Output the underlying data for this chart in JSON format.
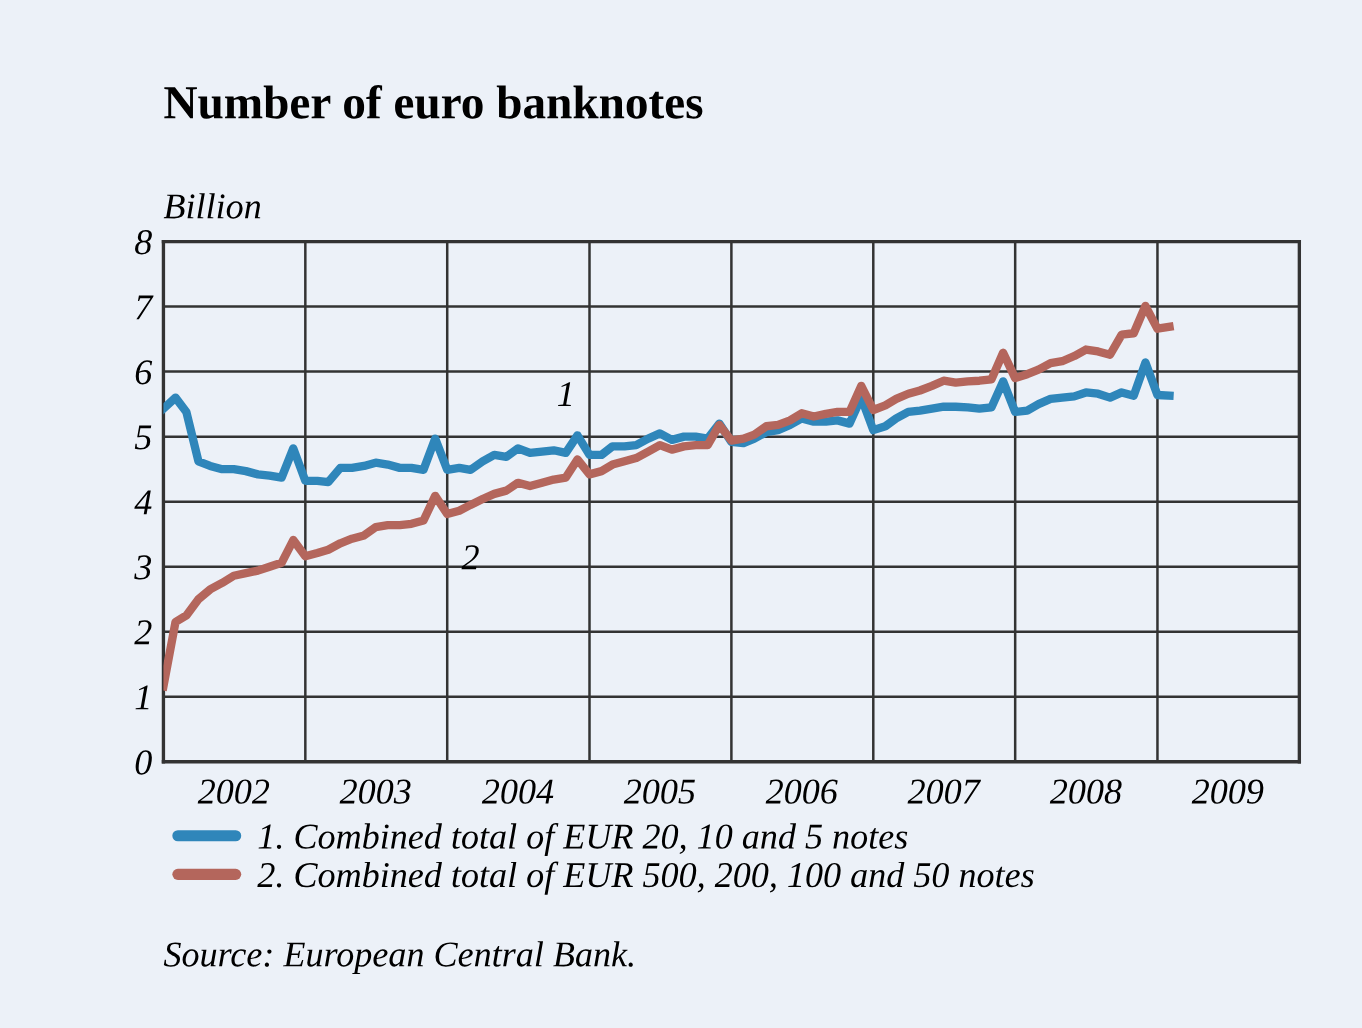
{
  "chart_data": {
    "type": "line",
    "title": "Number of euro banknotes",
    "ylabel": "Billion",
    "x": [
      "2002-01",
      "2002-02",
      "2002-03",
      "2002-04",
      "2002-05",
      "2002-06",
      "2002-07",
      "2002-08",
      "2002-09",
      "2002-10",
      "2002-11",
      "2002-12",
      "2003-01",
      "2003-02",
      "2003-03",
      "2003-04",
      "2003-05",
      "2003-06",
      "2003-07",
      "2003-08",
      "2003-09",
      "2003-10",
      "2003-11",
      "2003-12",
      "2004-01",
      "2004-02",
      "2004-03",
      "2004-04",
      "2004-05",
      "2004-06",
      "2004-07",
      "2004-08",
      "2004-09",
      "2004-10",
      "2004-11",
      "2004-12",
      "2005-01",
      "2005-02",
      "2005-03",
      "2005-04",
      "2005-05",
      "2005-06",
      "2005-07",
      "2005-08",
      "2005-09",
      "2005-10",
      "2005-11",
      "2005-12",
      "2006-01",
      "2006-02",
      "2006-03",
      "2006-04",
      "2006-05",
      "2006-06",
      "2006-07",
      "2006-08",
      "2006-09",
      "2006-10",
      "2006-11",
      "2006-12",
      "2007-01",
      "2007-02",
      "2007-03",
      "2007-04",
      "2007-05",
      "2007-06",
      "2007-07",
      "2007-08",
      "2007-09",
      "2007-10",
      "2007-11",
      "2007-12",
      "2008-01",
      "2008-02",
      "2008-03",
      "2008-04",
      "2008-05",
      "2008-06",
      "2008-07",
      "2008-08",
      "2008-09",
      "2008-10",
      "2008-11",
      "2008-12",
      "2009-01",
      "2009-02"
    ],
    "series": [
      {
        "name": "1. Combined total of EUR 20, 10 and 5 notes",
        "color": "#2f86ba",
        "values": [
          5.43,
          5.6,
          5.38,
          4.62,
          4.55,
          4.5,
          4.5,
          4.47,
          4.42,
          4.4,
          4.37,
          4.82,
          4.32,
          4.32,
          4.3,
          4.52,
          4.52,
          4.55,
          4.6,
          4.57,
          4.52,
          4.52,
          4.49,
          4.97,
          4.49,
          4.52,
          4.49,
          4.62,
          4.72,
          4.69,
          4.82,
          4.75,
          4.77,
          4.79,
          4.75,
          5.02,
          4.72,
          4.72,
          4.85,
          4.85,
          4.87,
          4.97,
          5.05,
          4.95,
          5.0,
          5.0,
          4.97,
          5.2,
          4.92,
          4.9,
          4.97,
          5.07,
          5.1,
          5.18,
          5.28,
          5.23,
          5.23,
          5.25,
          5.2,
          5.6,
          5.1,
          5.16,
          5.28,
          5.38,
          5.4,
          5.43,
          5.46,
          5.46,
          5.45,
          5.43,
          5.45,
          5.85,
          5.38,
          5.4,
          5.5,
          5.58,
          5.6,
          5.62,
          5.68,
          5.66,
          5.6,
          5.68,
          5.63,
          6.14,
          5.64,
          5.63
        ]
      },
      {
        "name": "2. Combined total of EUR 500, 200, 100 and 50 notes",
        "color": "#b4665c",
        "values": [
          1.16,
          2.15,
          2.25,
          2.5,
          2.65,
          2.75,
          2.86,
          2.9,
          2.94,
          3.0,
          3.06,
          3.41,
          3.16,
          3.21,
          3.26,
          3.36,
          3.43,
          3.48,
          3.61,
          3.64,
          3.64,
          3.66,
          3.71,
          4.09,
          3.81,
          3.86,
          3.95,
          4.04,
          4.12,
          4.17,
          4.29,
          4.24,
          4.29,
          4.34,
          4.37,
          4.65,
          4.42,
          4.47,
          4.57,
          4.62,
          4.67,
          4.77,
          4.87,
          4.8,
          4.85,
          4.87,
          4.87,
          5.18,
          4.94,
          4.97,
          5.03,
          5.16,
          5.18,
          5.25,
          5.36,
          5.31,
          5.35,
          5.38,
          5.38,
          5.78,
          5.41,
          5.48,
          5.58,
          5.66,
          5.71,
          5.78,
          5.86,
          5.83,
          5.85,
          5.86,
          5.88,
          6.29,
          5.9,
          5.96,
          6.03,
          6.13,
          6.16,
          6.24,
          6.34,
          6.31,
          6.26,
          6.57,
          6.59,
          7.01,
          6.66,
          6.69
        ]
      }
    ],
    "xlim": [
      "2002-01",
      "2010-01"
    ],
    "xticks": [
      {
        "value": "2002-01",
        "label": null
      },
      {
        "value": "2002-07",
        "label": "2002"
      },
      {
        "value": "2003-01",
        "label": null
      },
      {
        "value": "2003-07",
        "label": "2003"
      },
      {
        "value": "2004-01",
        "label": null
      },
      {
        "value": "2004-07",
        "label": "2004"
      },
      {
        "value": "2005-01",
        "label": null
      },
      {
        "value": "2005-07",
        "label": "2005"
      },
      {
        "value": "2006-01",
        "label": null
      },
      {
        "value": "2006-07",
        "label": "2006"
      },
      {
        "value": "2007-01",
        "label": null
      },
      {
        "value": "2007-07",
        "label": "2007"
      },
      {
        "value": "2008-01",
        "label": null
      },
      {
        "value": "2008-07",
        "label": "2008"
      },
      {
        "value": "2009-01",
        "label": null
      },
      {
        "value": "2009-07",
        "label": "2009"
      },
      {
        "value": "2010-01",
        "label": null
      }
    ],
    "ylim": [
      0,
      8
    ],
    "yticks": [
      0,
      1,
      2,
      3,
      4,
      5,
      6,
      7,
      8
    ],
    "grid": true,
    "legend": "bottom",
    "line_style": "solid",
    "marker": "none",
    "annotations": [
      {
        "text": "1",
        "x": "2004-11",
        "y": 4.75
      },
      {
        "text": "2",
        "x": "2004-03",
        "y": 3.95
      },
      "Source: European Central Bank."
    ]
  }
}
